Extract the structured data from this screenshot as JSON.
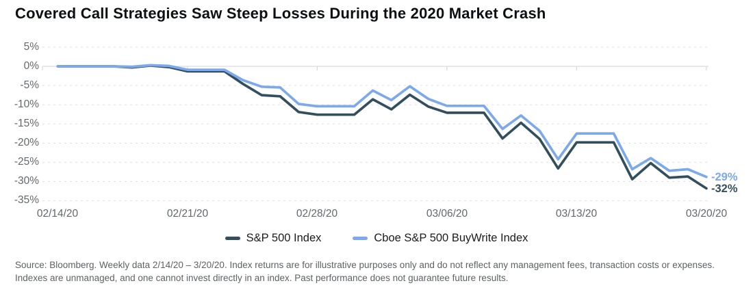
{
  "title": "Covered Call Strategies Saw Steep Losses During the 2020 Market Crash",
  "legend": [
    {
      "label": "S&P 500 Index",
      "color": "#334E5D"
    },
    {
      "label": "Cboe S&P 500 BuyWrite Index",
      "color": "#7CA8EC"
    }
  ],
  "footnote": "Source: Bloomberg. Weekly data 2/14/20 – 3/20/20. Index returns are for illustrative purposes only and do not reflect any management fees, transaction costs or expenses. Indexes are unmanaged, and one cannot invest directly in an index. Past performance does not guarantee future results.",
  "chart_data": {
    "type": "line",
    "title": "Covered Call Strategies Saw Steep Losses During the 2020 Market Crash",
    "x": [
      "02/14/20",
      "02/18/20",
      "02/19/20",
      "02/20/20",
      "02/21/20",
      "02/24/20",
      "02/25/20",
      "02/26/20",
      "02/27/20",
      "02/28/20",
      "03/02/20",
      "03/03/20",
      "03/04/20",
      "03/05/20",
      "03/06/20",
      "03/09/20",
      "03/10/20",
      "03/11/20",
      "03/12/20",
      "03/13/20",
      "03/16/20",
      "03/17/20",
      "03/18/20",
      "03/19/20",
      "03/20/20"
    ],
    "series": [
      {
        "name": "S&P 500 Index",
        "color": "#334E5D",
        "end_label": "-32%",
        "values": [
          0.0,
          -0.3,
          0.2,
          -0.2,
          -1.3,
          -4.6,
          -7.5,
          -7.8,
          -11.9,
          -12.6,
          -8.6,
          -11.2,
          -7.4,
          -10.5,
          -12.1,
          -18.8,
          -14.7,
          -18.9,
          -26.6,
          -19.8,
          -29.4,
          -25.2,
          -29.0,
          -28.7,
          -31.8
        ]
      },
      {
        "name": "Cboe S&P 500 BuyWrite Index",
        "color": "#7CA8EC",
        "end_label": "-29%",
        "values": [
          0.0,
          -0.1,
          0.3,
          0.1,
          -0.9,
          -3.6,
          -5.3,
          -5.5,
          -9.8,
          -10.4,
          -6.3,
          -8.8,
          -5.2,
          -8.5,
          -10.3,
          -16.3,
          -12.8,
          -16.8,
          -24.2,
          -17.5,
          -26.8,
          -23.9,
          -27.2,
          -26.8,
          -28.8
        ]
      }
    ],
    "unit": "%",
    "y_ticks": [
      "5%",
      "0%",
      "-5%",
      "-10%",
      "-15%",
      "-20%",
      "-25%",
      "-30%",
      "-35%"
    ],
    "x_ticks": [
      "02/14/20",
      "02/21/20",
      "02/28/20",
      "03/06/20",
      "03/13/20",
      "03/20/20"
    ],
    "ylim": [
      -35,
      5
    ],
    "grid": "horizontal-dashed",
    "legend_position": "bottom",
    "weekend_fill": "carry-forward"
  }
}
